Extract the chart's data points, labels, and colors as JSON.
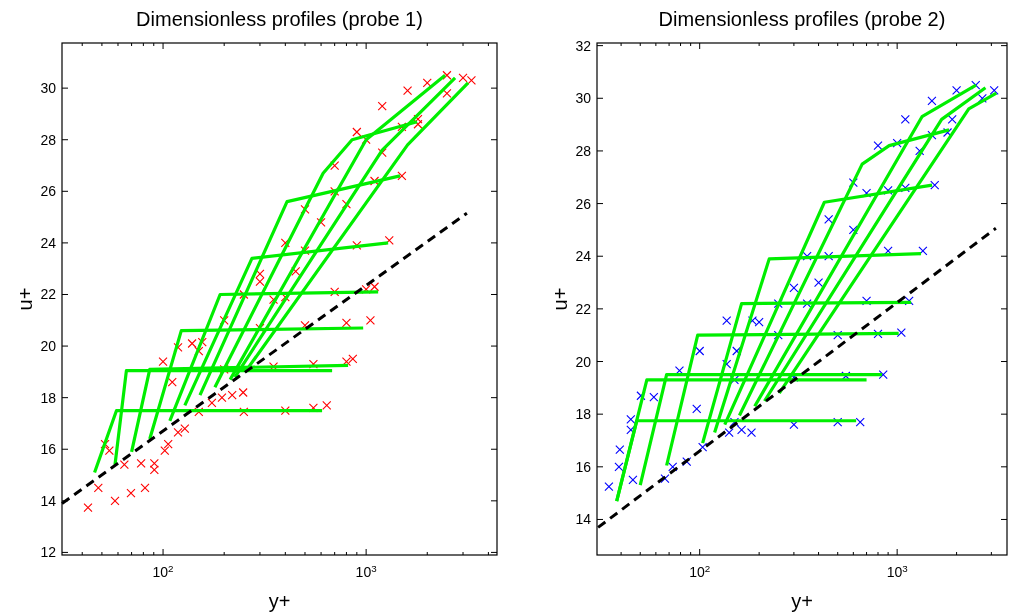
{
  "chart_data": [
    {
      "type": "scatter",
      "title": "Dimensionless profiles (probe 1)",
      "xlabel": "y+",
      "ylabel": "u+",
      "log": "x",
      "xlim": [
        31.8,
        4410
      ],
      "ylim": [
        11.9,
        31.75
      ],
      "xticks": [
        {
          "value": 40,
          "label": null
        },
        {
          "value": 50,
          "label": null
        },
        {
          "value": 60,
          "label": null
        },
        {
          "value": 70,
          "label": null
        },
        {
          "value": 80,
          "label": null
        },
        {
          "value": 90,
          "label": null
        },
        {
          "value": 100,
          "label": "10$^{2}$"
        },
        {
          "value": 200,
          "label": null
        },
        {
          "value": 300,
          "label": null
        },
        {
          "value": 400,
          "label": null
        },
        {
          "value": 500,
          "label": null
        },
        {
          "value": 600,
          "label": null
        },
        {
          "value": 700,
          "label": null
        },
        {
          "value": 800,
          "label": null
        },
        {
          "value": 900,
          "label": null
        },
        {
          "value": 1000,
          "label": "10$^{3}$"
        },
        {
          "value": 2000,
          "label": null
        },
        {
          "value": 3000,
          "label": null
        },
        {
          "value": 4000,
          "label": null
        }
      ],
      "yticks": [
        12,
        14,
        16,
        18,
        20,
        22,
        24,
        26,
        28,
        30
      ],
      "series": [
        {
          "type": "scatter",
          "marker": "cross",
          "color": "#ff0000",
          "x": [
            42.7,
            48,
            58,
            69.5,
            81.5,
            78,
            90.6,
            90.6,
            64.5,
            54.4,
            51.8,
            102,
            106,
            118.5,
            128,
            174,
            195,
            219,
            248,
            100,
            111,
            118.5,
            139,
            156,
            150,
            250,
            400,
            550,
            640,
            200,
            350,
            550,
            800,
            860,
            300,
            500,
            800,
            1050,
            400,
            700,
            1000,
            1100,
            500,
            900,
            1300,
            700,
            1100,
            1500,
            1000,
            1500,
            1800,
            300,
            400,
            500,
            700,
            900,
            1200,
            1600,
            2000,
            2500,
            3000,
            150,
            200,
            250,
            300,
            350,
            450,
            600,
            800,
            1200,
            1800,
            2500,
            3300
          ],
          "values": [
            13.74,
            14.5,
            14.0,
            14.3,
            14.5,
            15.45,
            15.45,
            15.2,
            15.4,
            15.95,
            16.2,
            15.95,
            16.2,
            16.65,
            16.8,
            17.8,
            18.0,
            18.1,
            18.2,
            19.4,
            18.6,
            19.95,
            20.1,
            20.15,
            17.45,
            17.45,
            17.5,
            17.6,
            17.7,
            19.1,
            19.2,
            19.3,
            19.4,
            19.5,
            20.7,
            20.8,
            20.9,
            21.0,
            21.9,
            22.1,
            22.2,
            22.3,
            23.7,
            23.9,
            24.1,
            26.0,
            26.4,
            26.6,
            28.0,
            28.5,
            28.6,
            22.5,
            24.0,
            25.3,
            27.0,
            28.3,
            29.3,
            29.9,
            30.2,
            30.5,
            30.4,
            19.8,
            21.0,
            22.0,
            22.8,
            21.8,
            22.9,
            24.8,
            25.5,
            27.5,
            28.8,
            29.8,
            30.3
          ]
        },
        {
          "type": "line",
          "color": "#00ee00",
          "x": [
            46,
            59,
            607
          ],
          "values": [
            15.1,
            17.5,
            17.5
          ]
        },
        {
          "type": "line",
          "color": "#00ee00",
          "x": [
            58,
            66,
            680
          ],
          "values": [
            15.4,
            19.05,
            19.05
          ]
        },
        {
          "type": "line",
          "color": "#00ee00",
          "x": [
            70,
            86,
            815
          ],
          "values": [
            15.9,
            19.1,
            19.25
          ]
        },
        {
          "type": "line",
          "color": "#00ee00",
          "x": [
            86,
            123,
            967
          ],
          "values": [
            16.4,
            20.6,
            20.7
          ]
        },
        {
          "type": "line",
          "color": "#00ee00",
          "x": [
            108,
            191,
            1146
          ],
          "values": [
            17.1,
            22.0,
            22.1
          ]
        },
        {
          "type": "line",
          "color": "#00ee00",
          "x": [
            128,
            274,
            1283
          ],
          "values": [
            17.7,
            23.4,
            24.0
          ]
        },
        {
          "type": "line",
          "color": "#00ee00",
          "x": [
            152,
            408,
            1469
          ],
          "values": [
            18.1,
            25.6,
            26.6
          ]
        },
        {
          "type": "line",
          "color": "#00ee00",
          "x": [
            180,
            614,
            853,
            1782
          ],
          "values": [
            18.4,
            26.7,
            28.0,
            28.7
          ]
        },
        {
          "type": "line",
          "color": "#00ee00",
          "x": [
            214,
            1000,
            2449
          ],
          "values": [
            18.7,
            28.0,
            30.5
          ]
        },
        {
          "type": "line",
          "color": "#00ee00",
          "x": [
            226,
            1200,
            2742
          ],
          "values": [
            18.8,
            27.6,
            30.4
          ]
        },
        {
          "type": "line",
          "color": "#00ee00",
          "x": [
            254,
            1600,
            3177
          ],
          "values": [
            19.0,
            27.8,
            30.2
          ]
        },
        {
          "type": "line",
          "line_style": "dashed",
          "color": "#000000",
          "x": [
            31.8,
            3135
          ],
          "values": [
            13.9,
            25.15
          ]
        }
      ]
    },
    {
      "type": "scatter",
      "title": "Dimensionless profiles (probe 2)",
      "xlabel": "y+",
      "ylabel": "u+",
      "log": "x",
      "xlim": [
        30.2,
        3600
      ],
      "ylim": [
        12.65,
        32.1
      ],
      "xticks": [
        {
          "value": 40,
          "label": null
        },
        {
          "value": 50,
          "label": null
        },
        {
          "value": 60,
          "label": null
        },
        {
          "value": 70,
          "label": null
        },
        {
          "value": 80,
          "label": null
        },
        {
          "value": 90,
          "label": null
        },
        {
          "value": 100,
          "label": "10$^{2}$"
        },
        {
          "value": 200,
          "label": null
        },
        {
          "value": 300,
          "label": null
        },
        {
          "value": 400,
          "label": null
        },
        {
          "value": 500,
          "label": null
        },
        {
          "value": 600,
          "label": null
        },
        {
          "value": 700,
          "label": null
        },
        {
          "value": 800,
          "label": null
        },
        {
          "value": 900,
          "label": null
        },
        {
          "value": 1000,
          "label": "10$^{3}$"
        },
        {
          "value": 2000,
          "label": null
        },
        {
          "value": 3000,
          "label": null
        }
      ],
      "yticks": [
        14,
        16,
        18,
        20,
        22,
        24,
        26,
        28,
        30,
        32
      ],
      "series": [
        {
          "type": "scatter",
          "marker": "cross",
          "color": "#0000ff",
          "x": [
            34.7,
            39,
            39.4,
            44.8,
            44.8,
            50.4,
            45.9,
            66.7,
            73,
            86,
            103.5,
            141,
            163,
            183,
            58.6,
            79,
            96.6,
            100,
            137,
            154,
            137,
            185,
            150,
            300,
            500,
            650,
            150,
            300,
            550,
            850,
            250,
            500,
            800,
            1050,
            350,
            700,
            1150,
            450,
            900,
            1350,
            700,
            1100,
            1550,
            1000,
            1500,
            1800,
            250,
            350,
            450,
            600,
            800,
            1100,
            1500,
            2000,
            2500,
            3100,
            200,
            300,
            400,
            600,
            900,
            1300,
            1900,
            2700
          ],
          "values": [
            15.25,
            16.0,
            16.65,
            17.8,
            17.4,
            18.7,
            15.5,
            15.55,
            16.0,
            16.2,
            16.75,
            17.3,
            17.4,
            17.3,
            18.65,
            19.65,
            18.2,
            20.4,
            19.9,
            20.4,
            21.55,
            21.55,
            17.7,
            17.6,
            17.7,
            17.7,
            19.3,
            19.4,
            19.45,
            19.5,
            21.0,
            21.0,
            21.05,
            21.1,
            22.2,
            22.3,
            22.3,
            24.0,
            24.2,
            24.2,
            26.4,
            26.6,
            26.7,
            28.3,
            28.6,
            28.7,
            22.2,
            24.0,
            25.4,
            26.8,
            28.2,
            29.2,
            29.9,
            30.3,
            30.5,
            30.3,
            21.5,
            22.8,
            23.0,
            25.0,
            26.5,
            28.0,
            29.2,
            30.0
          ]
        },
        {
          "type": "line",
          "color": "#00ee00",
          "x": [
            38,
            48,
            620
          ],
          "values": [
            14.7,
            17.75,
            17.75
          ]
        },
        {
          "type": "line",
          "color": "#00ee00",
          "x": [
            38,
            54,
            700
          ],
          "values": [
            14.7,
            19.3,
            19.3
          ]
        },
        {
          "type": "line",
          "color": "#00ee00",
          "x": [
            50,
            68,
            838
          ],
          "values": [
            15.3,
            19.5,
            19.5
          ]
        },
        {
          "type": "line",
          "color": "#00ee00",
          "x": [
            68,
            97.7,
            1018
          ],
          "values": [
            16.05,
            21.0,
            21.07
          ]
        },
        {
          "type": "line",
          "color": "#00ee00",
          "x": [
            103.5,
            163,
            1177
          ],
          "values": [
            16.9,
            22.2,
            22.25
          ]
        },
        {
          "type": "line",
          "color": "#00ee00",
          "x": [
            119,
            225,
            1321
          ],
          "values": [
            17.3,
            23.9,
            24.1
          ]
        },
        {
          "type": "line",
          "color": "#00ee00",
          "x": [
            134,
            428,
            1503
          ],
          "values": [
            17.6,
            26.05,
            26.7
          ]
        },
        {
          "type": "line",
          "color": "#00ee00",
          "x": [
            159,
            665,
            911,
            1833
          ],
          "values": [
            17.95,
            27.5,
            28.2,
            28.8
          ]
        },
        {
          "type": "line",
          "color": "#00ee00",
          "x": [
            190,
            1336,
            2508
          ],
          "values": [
            18.3,
            29.3,
            30.5
          ]
        },
        {
          "type": "line",
          "color": "#00ee00",
          "x": [
            213,
            1680,
            2800
          ],
          "values": [
            18.5,
            29.2,
            30.4
          ]
        },
        {
          "type": "line",
          "color": "#00ee00",
          "x": [
            253,
            2305,
            3180
          ],
          "values": [
            18.8,
            29.6,
            30.2
          ]
        },
        {
          "type": "line",
          "line_style": "dashed",
          "color": "#000000",
          "x": [
            30.6,
            3162
          ],
          "values": [
            13.7,
            25.06
          ]
        }
      ]
    }
  ]
}
